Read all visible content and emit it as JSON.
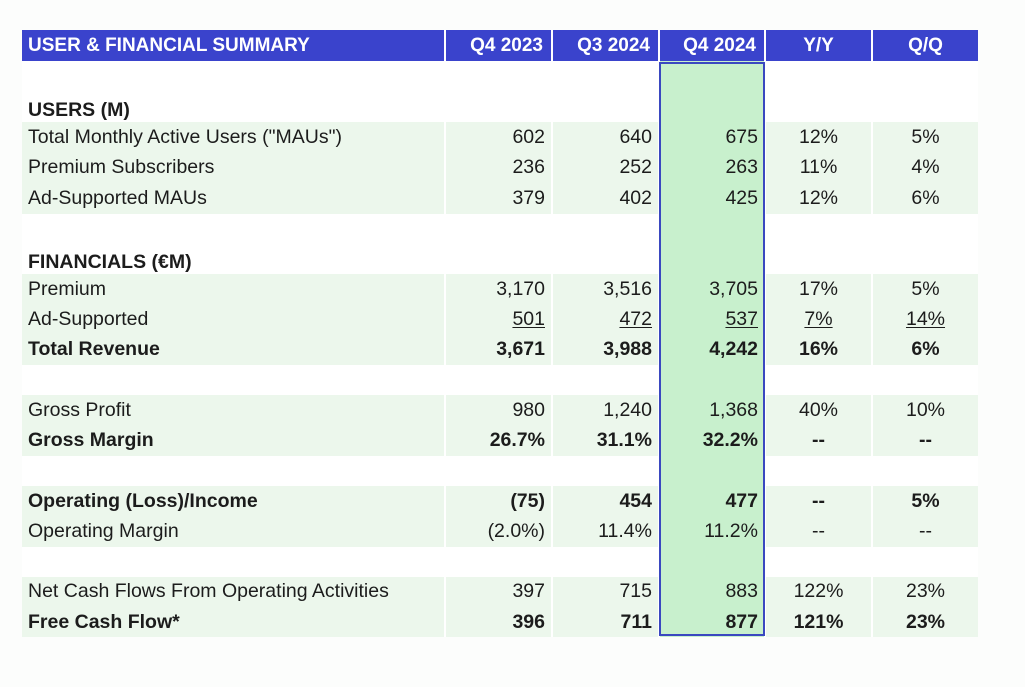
{
  "header": {
    "title": "USER & FINANCIAL SUMMARY",
    "columns": [
      "Q4 2023",
      "Q3 2024",
      "Q4 2024",
      "Y/Y",
      "Q/Q"
    ]
  },
  "sections": {
    "users_title": "USERS (M)",
    "financials_title": "FINANCIALS (€M)"
  },
  "rows": {
    "mau": [
      "Total Monthly Active Users (\"MAUs\")",
      "602",
      "640",
      "675",
      "12%",
      "5%"
    ],
    "premium_subs": [
      "Premium Subscribers",
      "236",
      "252",
      "263",
      "11%",
      "4%"
    ],
    "ad_maus": [
      "Ad-Supported MAUs",
      "379",
      "402",
      "425",
      "12%",
      "6%"
    ],
    "premium_rev": [
      "Premium",
      "3,170",
      "3,516",
      "3,705",
      "17%",
      "5%"
    ],
    "ad_rev": [
      "Ad-Supported",
      "501",
      "472",
      "537",
      "7%",
      "14%"
    ],
    "total_rev": [
      "Total Revenue",
      "3,671",
      "3,988",
      "4,242",
      "16%",
      "6%"
    ],
    "gross_profit": [
      "Gross Profit",
      "980",
      "1,240",
      "1,368",
      "40%",
      "10%"
    ],
    "gross_margin": [
      "Gross Margin",
      "26.7%",
      "31.1%",
      "32.2%",
      "--",
      "--"
    ],
    "op_income": [
      "Operating (Loss)/Income",
      "(75)",
      "454",
      "477",
      "--",
      "5%"
    ],
    "op_margin": [
      "Operating Margin",
      "(2.0%)",
      "11.4%",
      "11.2%",
      "--",
      "--"
    ],
    "ocf": [
      "Net Cash Flows From Operating Activities",
      "397",
      "715",
      "883",
      "122%",
      "23%"
    ],
    "fcf": [
      "Free Cash Flow*",
      "396",
      "711",
      "877",
      "121%",
      "23%"
    ]
  },
  "colors": {
    "header_bg": "#3a43cc",
    "row_green": "#ecf7ec",
    "highlight_col": "#c8f0cd",
    "highlight_border": "#3a48c0"
  }
}
